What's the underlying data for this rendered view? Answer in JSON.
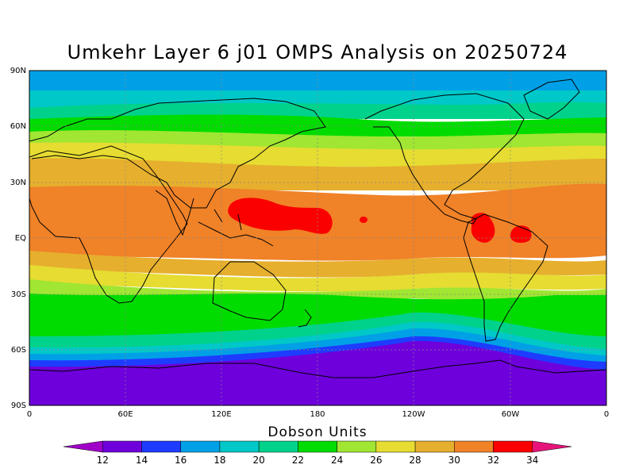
{
  "title": "Umkehr Layer 6 j01 OMPS Analysis on 20250724",
  "colorbar": {
    "label": "Dobson Units",
    "ticks": [
      "12",
      "14",
      "16",
      "18",
      "20",
      "22",
      "24",
      "26",
      "28",
      "30",
      "32",
      "34"
    ],
    "colors": [
      "#a000c8",
      "#6e00dc",
      "#1e3cff",
      "#00a0e6",
      "#00c8c8",
      "#00d28c",
      "#00dc00",
      "#a0e632",
      "#e6dc32",
      "#e6af2d",
      "#f08228",
      "#fa0000",
      "#e6147a"
    ]
  },
  "axes": {
    "lat_labels": [
      "90N",
      "60N",
      "30N",
      "EQ",
      "30S",
      "60S",
      "90S"
    ],
    "lon_labels": [
      "0",
      "60E",
      "120E",
      "180",
      "120W",
      "60W",
      "0"
    ]
  },
  "field": {
    "units": "Dobson Units",
    "bands_north_to_south": [
      {
        "from_lat": 90,
        "to_lat": 72,
        "value_range": "18-20"
      },
      {
        "from_lat": 72,
        "to_lat": 66,
        "value_range": "20-22"
      },
      {
        "from_lat": 66,
        "to_lat": 54,
        "value_range": "22-24"
      },
      {
        "from_lat": 54,
        "to_lat": 46,
        "value_range": "24-26"
      },
      {
        "from_lat": 46,
        "to_lat": 38,
        "value_range": "26-28"
      },
      {
        "from_lat": 38,
        "to_lat": 28,
        "value_range": "28-30"
      },
      {
        "from_lat": 28,
        "to_lat": -12,
        "value_range": "30-32"
      },
      {
        "from_lat": -12,
        "to_lat": -18,
        "value_range": "28-30"
      },
      {
        "from_lat": -18,
        "to_lat": -26,
        "value_range": "26-28"
      },
      {
        "from_lat": -26,
        "to_lat": -34,
        "value_range": "24-26"
      },
      {
        "from_lat": -34,
        "to_lat": -50,
        "value_range": "22-24"
      },
      {
        "from_lat": -50,
        "to_lat": -56,
        "value_range": "20-22"
      },
      {
        "from_lat": -56,
        "to_lat": -60,
        "value_range": "18-20"
      },
      {
        "from_lat": -60,
        "to_lat": -64,
        "value_range": "16-18"
      },
      {
        "from_lat": -64,
        "to_lat": -68,
        "value_range": "14-16"
      },
      {
        "from_lat": -68,
        "to_lat": -90,
        "value_range": "12-14"
      }
    ],
    "maxima": [
      {
        "region": "western tropical Pacific",
        "value_range": "32-34"
      },
      {
        "region": "northern South America",
        "value_range": "32-34"
      },
      {
        "region": "equatorial Atlantic coast",
        "value_range": "32-34"
      }
    ]
  }
}
